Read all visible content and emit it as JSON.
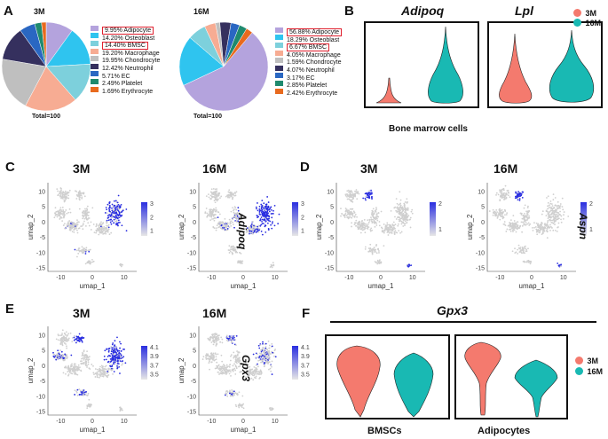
{
  "panel_labels": {
    "a": "A",
    "b": "B",
    "c": "C",
    "d": "D",
    "e": "E",
    "f": "F"
  },
  "panel_a": {
    "pies": [
      {
        "title": "3M",
        "total": "Total=100",
        "slices": [
          {
            "label": "Adipocyte",
            "percent": "9.95%",
            "value": 9.95,
            "color": "#b4a3dd",
            "boxed": true
          },
          {
            "label": "Osteoblast",
            "percent": "14.20%",
            "value": 14.2,
            "color": "#2fc4ef",
            "boxed": false
          },
          {
            "label": "BMSC",
            "percent": "14.40%",
            "value": 14.4,
            "color": "#7dd0dc",
            "boxed": true
          },
          {
            "label": "Macrophage",
            "percent": "19.20%",
            "value": 19.2,
            "color": "#f7ac93",
            "boxed": false
          },
          {
            "label": "Chondrocyte",
            "percent": "19.95%",
            "value": 19.95,
            "color": "#bfbfbf",
            "boxed": false
          },
          {
            "label": "Neutrophil",
            "percent": "12.42%",
            "value": 12.42,
            "color": "#35305e",
            "boxed": false
          },
          {
            "label": "EC",
            "percent": "5.71%",
            "value": 5.71,
            "color": "#2a67c2",
            "boxed": false
          },
          {
            "label": "Platelet",
            "percent": "2.49%",
            "value": 2.49,
            "color": "#1f8a6e",
            "boxed": false
          },
          {
            "label": "Erythrocyte",
            "percent": "1.69%",
            "value": 1.69,
            "color": "#e86a1e",
            "boxed": false
          }
        ]
      },
      {
        "title": "16M",
        "total": "Total=100",
        "slices": [
          {
            "label": "Adipocyte",
            "percent": "56.88%",
            "value": 56.88,
            "color": "#b4a3dd",
            "boxed": true
          },
          {
            "label": "Osteoblast",
            "percent": "18.29%",
            "value": 18.29,
            "color": "#2fc4ef",
            "boxed": false
          },
          {
            "label": "BMSC",
            "percent": "6.67%",
            "value": 6.67,
            "color": "#7dd0dc",
            "boxed": true
          },
          {
            "label": "Macrophage",
            "percent": "4.05%",
            "value": 4.05,
            "color": "#f7ac93",
            "boxed": false
          },
          {
            "label": "Chondrocyte",
            "percent": "1.59%",
            "value": 1.59,
            "color": "#bfbfbf",
            "boxed": false
          },
          {
            "label": "Neutrophil",
            "percent": "4.07%",
            "value": 4.07,
            "color": "#35305e",
            "boxed": false
          },
          {
            "label": "EC",
            "percent": "3.17%",
            "value": 3.17,
            "color": "#2a67c2",
            "boxed": false
          },
          {
            "label": "Platelet",
            "percent": "2.85%",
            "value": 2.85,
            "color": "#1f8a6e",
            "boxed": false
          },
          {
            "label": "Erythrocyte",
            "percent": "2.42%",
            "value": 2.42,
            "color": "#e86a1e",
            "boxed": false
          }
        ]
      }
    ]
  },
  "panel_b": {
    "genes": [
      "Adipoq",
      "Lpl"
    ],
    "legend": [
      {
        "label": "3M",
        "color": "#f47a6e"
      },
      {
        "label": "16M",
        "color": "#19b9b3"
      }
    ],
    "caption": "Bone marrow cells"
  },
  "panel_c": {
    "titles": [
      "3M",
      "16M"
    ],
    "gene": "Adipoq",
    "xlabel": "umap_1",
    "ylabel": "umap_2",
    "scale_ticks": [
      "3",
      "2",
      "1"
    ]
  },
  "panel_d": {
    "titles": [
      "3M",
      "16M"
    ],
    "gene": "Aspn",
    "xlabel": "umap_1",
    "ylabel": "umap_2",
    "scale_ticks": [
      "2",
      "1"
    ]
  },
  "panel_e": {
    "titles": [
      "3M",
      "16M"
    ],
    "gene": "Gpx3",
    "xlabel": "umap_1",
    "ylabel": "umap_2",
    "scale_ticks": [
      "4.1",
      "3.9",
      "3.7",
      "3.5"
    ]
  },
  "panel_f": {
    "gene": "Gpx3",
    "groups": [
      "BMSCs",
      "Adipocytes"
    ],
    "legend": [
      {
        "label": "3M",
        "color": "#f47a6e"
      },
      {
        "label": "16M",
        "color": "#19b9b3"
      }
    ]
  },
  "umap_axes": {
    "x_ticks": [
      "-10",
      "0",
      "10"
    ],
    "y_ticks": [
      "10",
      "5",
      "0",
      "-5",
      "-10",
      "-15"
    ]
  }
}
